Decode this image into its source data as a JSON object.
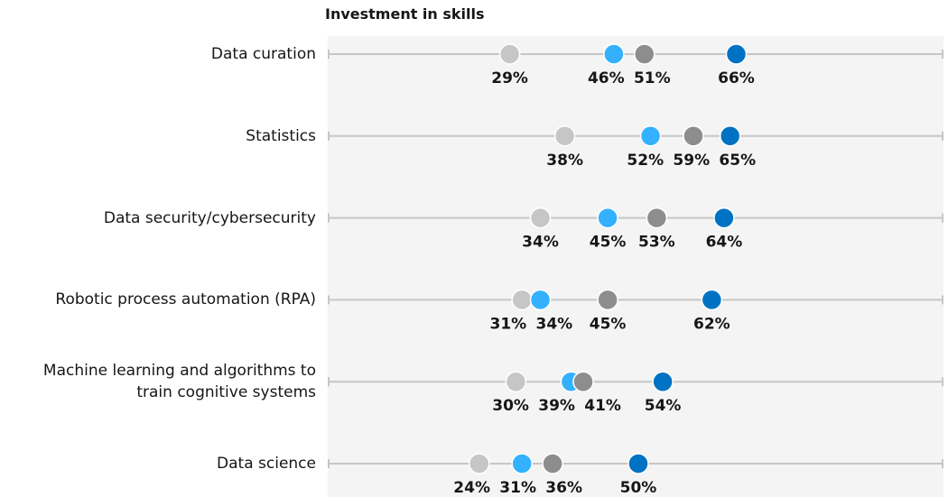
{
  "chart_data": {
    "type": "dot",
    "title": "Investment in skills",
    "categories": [
      "Data curation",
      "Statistics",
      "Data security/cybersecurity",
      "Robotic process automation (RPA)",
      "Machine learning and algorithms to\ntrain cognitive systems",
      "Data science"
    ],
    "xlim": [
      0,
      100
    ],
    "series": [
      {
        "color": "#c6c6c6",
        "values": [
          29,
          38,
          34,
          31,
          30,
          24
        ],
        "value_labels": [
          "29%",
          "38%",
          "34%",
          "31%",
          "30%",
          "24%"
        ]
      },
      {
        "color": "#33b1ff",
        "values": [
          46,
          52,
          45,
          34,
          39,
          31
        ],
        "value_labels": [
          "46%",
          "52%",
          "45%",
          "34%",
          "39%",
          "31%"
        ]
      },
      {
        "color": "#8d8d8d",
        "values": [
          51,
          59,
          53,
          45,
          41,
          36
        ],
        "value_labels": [
          "51%",
          "59%",
          "53%",
          "45%",
          "41%",
          "36%"
        ]
      },
      {
        "color": "#0072c3",
        "values": [
          66,
          65,
          64,
          62,
          54,
          50
        ],
        "value_labels": [
          "66%",
          "65%",
          "64%",
          "62%",
          "54%",
          "50%"
        ]
      }
    ]
  }
}
